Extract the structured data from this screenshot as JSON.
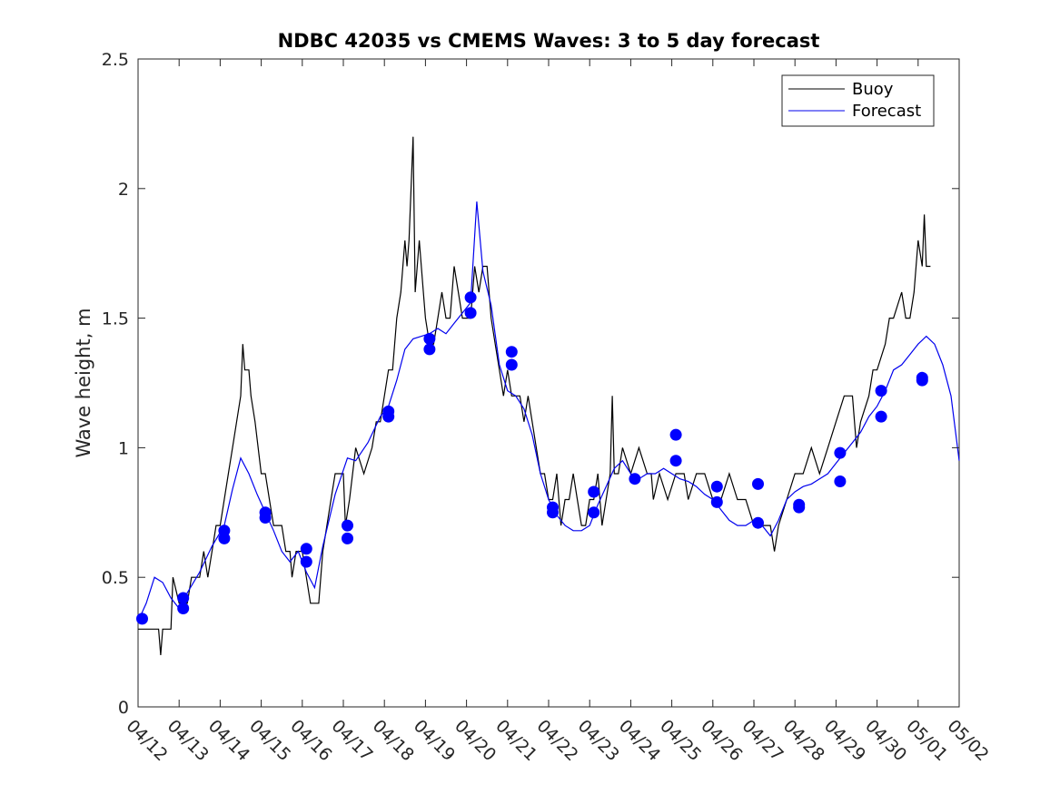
{
  "chart_data": {
    "type": "line",
    "title": "NDBC 42035 vs CMEMS Waves: 3 to 5 day forecast",
    "xlabel": "",
    "ylabel": "Wave height, m",
    "xlim": [
      "04/12",
      "05/02"
    ],
    "ylim": [
      0,
      2.5
    ],
    "x_ticks": [
      "04/12",
      "04/13",
      "04/14",
      "04/15",
      "04/16",
      "04/17",
      "04/18",
      "04/19",
      "04/20",
      "04/21",
      "04/22",
      "04/23",
      "04/24",
      "04/25",
      "04/26",
      "04/27",
      "04/28",
      "04/29",
      "04/30",
      "05/01",
      "05/02"
    ],
    "y_ticks": [
      "0",
      "0.5",
      "1",
      "1.5",
      "2",
      "2.5"
    ],
    "grid": false,
    "legend_position": "top-right",
    "legend": [
      {
        "label": "Buoy",
        "color": "#000000"
      },
      {
        "label": "Forecast",
        "color": "#0000ee"
      }
    ],
    "colors": {
      "buoy": "#000000",
      "forecast": "#0000ee",
      "marker": "#0000ff"
    },
    "series": [
      {
        "name": "Buoy",
        "color": "#000000",
        "points": [
          [
            0.0,
            0.3
          ],
          [
            0.5,
            0.3
          ],
          [
            0.55,
            0.2
          ],
          [
            0.6,
            0.3
          ],
          [
            0.8,
            0.3
          ],
          [
            0.85,
            0.5
          ],
          [
            1.0,
            0.4
          ],
          [
            1.2,
            0.4
          ],
          [
            1.3,
            0.5
          ],
          [
            1.5,
            0.5
          ],
          [
            1.6,
            0.6
          ],
          [
            1.7,
            0.5
          ],
          [
            1.8,
            0.6
          ],
          [
            1.9,
            0.7
          ],
          [
            2.0,
            0.7
          ],
          [
            2.1,
            0.8
          ],
          [
            2.2,
            0.9
          ],
          [
            2.3,
            1.0
          ],
          [
            2.4,
            1.1
          ],
          [
            2.5,
            1.2
          ],
          [
            2.55,
            1.4
          ],
          [
            2.6,
            1.3
          ],
          [
            2.7,
            1.3
          ],
          [
            2.75,
            1.2
          ],
          [
            2.85,
            1.1
          ],
          [
            3.0,
            0.9
          ],
          [
            3.1,
            0.9
          ],
          [
            3.2,
            0.8
          ],
          [
            3.3,
            0.7
          ],
          [
            3.4,
            0.7
          ],
          [
            3.5,
            0.7
          ],
          [
            3.6,
            0.6
          ],
          [
            3.7,
            0.6
          ],
          [
            3.75,
            0.5
          ],
          [
            3.85,
            0.6
          ],
          [
            4.0,
            0.6
          ],
          [
            4.1,
            0.5
          ],
          [
            4.2,
            0.4
          ],
          [
            4.4,
            0.4
          ],
          [
            4.5,
            0.6
          ],
          [
            4.6,
            0.7
          ],
          [
            4.7,
            0.8
          ],
          [
            4.8,
            0.9
          ],
          [
            5.0,
            0.9
          ],
          [
            5.05,
            0.7
          ],
          [
            5.15,
            0.8
          ],
          [
            5.3,
            1.0
          ],
          [
            5.5,
            0.9
          ],
          [
            5.7,
            1.0
          ],
          [
            5.8,
            1.1
          ],
          [
            5.9,
            1.1
          ],
          [
            6.0,
            1.2
          ],
          [
            6.1,
            1.3
          ],
          [
            6.2,
            1.3
          ],
          [
            6.3,
            1.5
          ],
          [
            6.4,
            1.6
          ],
          [
            6.5,
            1.8
          ],
          [
            6.55,
            1.7
          ],
          [
            6.6,
            1.8
          ],
          [
            6.7,
            2.2
          ],
          [
            6.75,
            1.6
          ],
          [
            6.85,
            1.8
          ],
          [
            6.95,
            1.6
          ],
          [
            7.0,
            1.5
          ],
          [
            7.1,
            1.4
          ],
          [
            7.2,
            1.4
          ],
          [
            7.3,
            1.5
          ],
          [
            7.4,
            1.6
          ],
          [
            7.5,
            1.5
          ],
          [
            7.6,
            1.5
          ],
          [
            7.7,
            1.7
          ],
          [
            7.8,
            1.6
          ],
          [
            7.9,
            1.5
          ],
          [
            8.0,
            1.5
          ],
          [
            8.1,
            1.5
          ],
          [
            8.2,
            1.7
          ],
          [
            8.3,
            1.6
          ],
          [
            8.4,
            1.7
          ],
          [
            8.5,
            1.7
          ],
          [
            8.6,
            1.5
          ],
          [
            8.7,
            1.4
          ],
          [
            8.8,
            1.3
          ],
          [
            8.9,
            1.2
          ],
          [
            9.0,
            1.3
          ],
          [
            9.1,
            1.2
          ],
          [
            9.3,
            1.2
          ],
          [
            9.4,
            1.1
          ],
          [
            9.5,
            1.2
          ],
          [
            9.6,
            1.1
          ],
          [
            9.7,
            1.0
          ],
          [
            9.8,
            0.9
          ],
          [
            9.9,
            0.9
          ],
          [
            10.0,
            0.8
          ],
          [
            10.1,
            0.8
          ],
          [
            10.2,
            0.9
          ],
          [
            10.3,
            0.7
          ],
          [
            10.4,
            0.8
          ],
          [
            10.5,
            0.8
          ],
          [
            10.6,
            0.9
          ],
          [
            10.7,
            0.8
          ],
          [
            10.8,
            0.7
          ],
          [
            10.9,
            0.7
          ],
          [
            11.0,
            0.8
          ],
          [
            11.1,
            0.8
          ],
          [
            11.2,
            0.9
          ],
          [
            11.3,
            0.7
          ],
          [
            11.4,
            0.8
          ],
          [
            11.5,
            0.9
          ],
          [
            11.55,
            1.2
          ],
          [
            11.6,
            0.9
          ],
          [
            11.7,
            0.9
          ],
          [
            11.8,
            1.0
          ],
          [
            12.0,
            0.9
          ],
          [
            12.2,
            1.0
          ],
          [
            12.4,
            0.9
          ],
          [
            12.5,
            0.9
          ],
          [
            12.55,
            0.8
          ],
          [
            12.7,
            0.9
          ],
          [
            12.9,
            0.8
          ],
          [
            13.1,
            0.9
          ],
          [
            13.3,
            0.9
          ],
          [
            13.4,
            0.8
          ],
          [
            13.6,
            0.9
          ],
          [
            13.8,
            0.9
          ],
          [
            14.0,
            0.8
          ],
          [
            14.2,
            0.8
          ],
          [
            14.4,
            0.9
          ],
          [
            14.6,
            0.8
          ],
          [
            14.8,
            0.8
          ],
          [
            15.0,
            0.7
          ],
          [
            15.2,
            0.7
          ],
          [
            15.4,
            0.7
          ],
          [
            15.5,
            0.6
          ],
          [
            15.6,
            0.7
          ],
          [
            15.8,
            0.8
          ],
          [
            16.0,
            0.9
          ],
          [
            16.2,
            0.9
          ],
          [
            16.4,
            1.0
          ],
          [
            16.6,
            0.9
          ],
          [
            16.8,
            1.0
          ],
          [
            17.0,
            1.1
          ],
          [
            17.2,
            1.2
          ],
          [
            17.4,
            1.2
          ],
          [
            17.5,
            1.0
          ],
          [
            17.6,
            1.1
          ],
          [
            17.8,
            1.2
          ],
          [
            17.9,
            1.3
          ],
          [
            18.0,
            1.3
          ],
          [
            18.2,
            1.4
          ],
          [
            18.3,
            1.5
          ],
          [
            18.4,
            1.5
          ],
          [
            18.6,
            1.6
          ],
          [
            18.7,
            1.5
          ],
          [
            18.8,
            1.5
          ],
          [
            18.9,
            1.6
          ],
          [
            19.0,
            1.8
          ],
          [
            19.1,
            1.7
          ],
          [
            19.15,
            1.9
          ],
          [
            19.2,
            1.7
          ],
          [
            19.3,
            1.7
          ]
        ]
      },
      {
        "name": "Forecast",
        "color": "#0000ee",
        "points": [
          [
            0.0,
            0.33
          ],
          [
            0.2,
            0.4
          ],
          [
            0.4,
            0.5
          ],
          [
            0.6,
            0.48
          ],
          [
            0.8,
            0.42
          ],
          [
            1.0,
            0.38
          ],
          [
            1.2,
            0.44
          ],
          [
            1.5,
            0.52
          ],
          [
            1.8,
            0.62
          ],
          [
            2.1,
            0.7
          ],
          [
            2.3,
            0.84
          ],
          [
            2.5,
            0.96
          ],
          [
            2.7,
            0.9
          ],
          [
            2.9,
            0.82
          ],
          [
            3.1,
            0.75
          ],
          [
            3.3,
            0.68
          ],
          [
            3.5,
            0.6
          ],
          [
            3.7,
            0.56
          ],
          [
            3.9,
            0.6
          ],
          [
            4.1,
            0.52
          ],
          [
            4.3,
            0.46
          ],
          [
            4.5,
            0.62
          ],
          [
            4.8,
            0.82
          ],
          [
            5.1,
            0.96
          ],
          [
            5.3,
            0.95
          ],
          [
            5.6,
            1.02
          ],
          [
            5.9,
            1.12
          ],
          [
            6.1,
            1.16
          ],
          [
            6.3,
            1.26
          ],
          [
            6.5,
            1.38
          ],
          [
            6.7,
            1.42
          ],
          [
            6.9,
            1.43
          ],
          [
            7.1,
            1.44
          ],
          [
            7.3,
            1.46
          ],
          [
            7.5,
            1.44
          ],
          [
            7.7,
            1.48
          ],
          [
            7.9,
            1.52
          ],
          [
            8.1,
            1.56
          ],
          [
            8.25,
            1.95
          ],
          [
            8.4,
            1.68
          ],
          [
            8.6,
            1.55
          ],
          [
            8.8,
            1.32
          ],
          [
            9.0,
            1.22
          ],
          [
            9.2,
            1.2
          ],
          [
            9.4,
            1.15
          ],
          [
            9.6,
            1.05
          ],
          [
            9.8,
            0.9
          ],
          [
            10.0,
            0.8
          ],
          [
            10.2,
            0.74
          ],
          [
            10.4,
            0.7
          ],
          [
            10.6,
            0.68
          ],
          [
            10.8,
            0.68
          ],
          [
            11.0,
            0.7
          ],
          [
            11.2,
            0.78
          ],
          [
            11.4,
            0.85
          ],
          [
            11.6,
            0.92
          ],
          [
            11.8,
            0.95
          ],
          [
            12.0,
            0.9
          ],
          [
            12.2,
            0.88
          ],
          [
            12.4,
            0.9
          ],
          [
            12.6,
            0.9
          ],
          [
            12.8,
            0.92
          ],
          [
            13.0,
            0.9
          ],
          [
            13.2,
            0.88
          ],
          [
            13.4,
            0.87
          ],
          [
            13.6,
            0.85
          ],
          [
            13.8,
            0.82
          ],
          [
            14.0,
            0.8
          ],
          [
            14.2,
            0.76
          ],
          [
            14.4,
            0.72
          ],
          [
            14.6,
            0.7
          ],
          [
            14.8,
            0.7
          ],
          [
            15.0,
            0.72
          ],
          [
            15.2,
            0.7
          ],
          [
            15.4,
            0.66
          ],
          [
            15.6,
            0.72
          ],
          [
            15.8,
            0.8
          ],
          [
            16.0,
            0.83
          ],
          [
            16.2,
            0.85
          ],
          [
            16.4,
            0.86
          ],
          [
            16.6,
            0.88
          ],
          [
            16.8,
            0.9
          ],
          [
            17.0,
            0.94
          ],
          [
            17.2,
            0.98
          ],
          [
            17.4,
            1.02
          ],
          [
            17.6,
            1.06
          ],
          [
            17.8,
            1.12
          ],
          [
            18.0,
            1.16
          ],
          [
            18.2,
            1.22
          ],
          [
            18.4,
            1.3
          ],
          [
            18.6,
            1.32
          ],
          [
            18.8,
            1.36
          ],
          [
            19.0,
            1.4
          ],
          [
            19.2,
            1.43
          ],
          [
            19.4,
            1.4
          ],
          [
            19.6,
            1.32
          ],
          [
            19.8,
            1.2
          ],
          [
            20.0,
            0.95
          ]
        ]
      }
    ],
    "markers": [
      [
        0.1,
        0.34
      ],
      [
        1.1,
        0.38
      ],
      [
        1.1,
        0.42
      ],
      [
        2.1,
        0.65
      ],
      [
        2.1,
        0.68
      ],
      [
        3.1,
        0.73
      ],
      [
        3.1,
        0.75
      ],
      [
        4.1,
        0.56
      ],
      [
        4.1,
        0.61
      ],
      [
        5.1,
        0.65
      ],
      [
        5.1,
        0.7
      ],
      [
        6.1,
        1.12
      ],
      [
        6.1,
        1.14
      ],
      [
        7.1,
        1.38
      ],
      [
        7.1,
        1.42
      ],
      [
        8.1,
        1.52
      ],
      [
        8.1,
        1.58
      ],
      [
        9.1,
        1.32
      ],
      [
        9.1,
        1.37
      ],
      [
        10.1,
        0.75
      ],
      [
        10.1,
        0.77
      ],
      [
        11.1,
        0.75
      ],
      [
        11.1,
        0.83
      ],
      [
        12.1,
        0.88
      ],
      [
        13.1,
        0.95
      ],
      [
        13.1,
        1.05
      ],
      [
        14.1,
        0.79
      ],
      [
        14.1,
        0.85
      ],
      [
        15.1,
        0.71
      ],
      [
        15.1,
        0.86
      ],
      [
        16.1,
        0.77
      ],
      [
        16.1,
        0.78
      ],
      [
        17.1,
        0.87
      ],
      [
        17.1,
        0.98
      ],
      [
        18.1,
        1.12
      ],
      [
        18.1,
        1.22
      ],
      [
        19.1,
        1.26
      ],
      [
        19.1,
        1.27
      ]
    ]
  }
}
